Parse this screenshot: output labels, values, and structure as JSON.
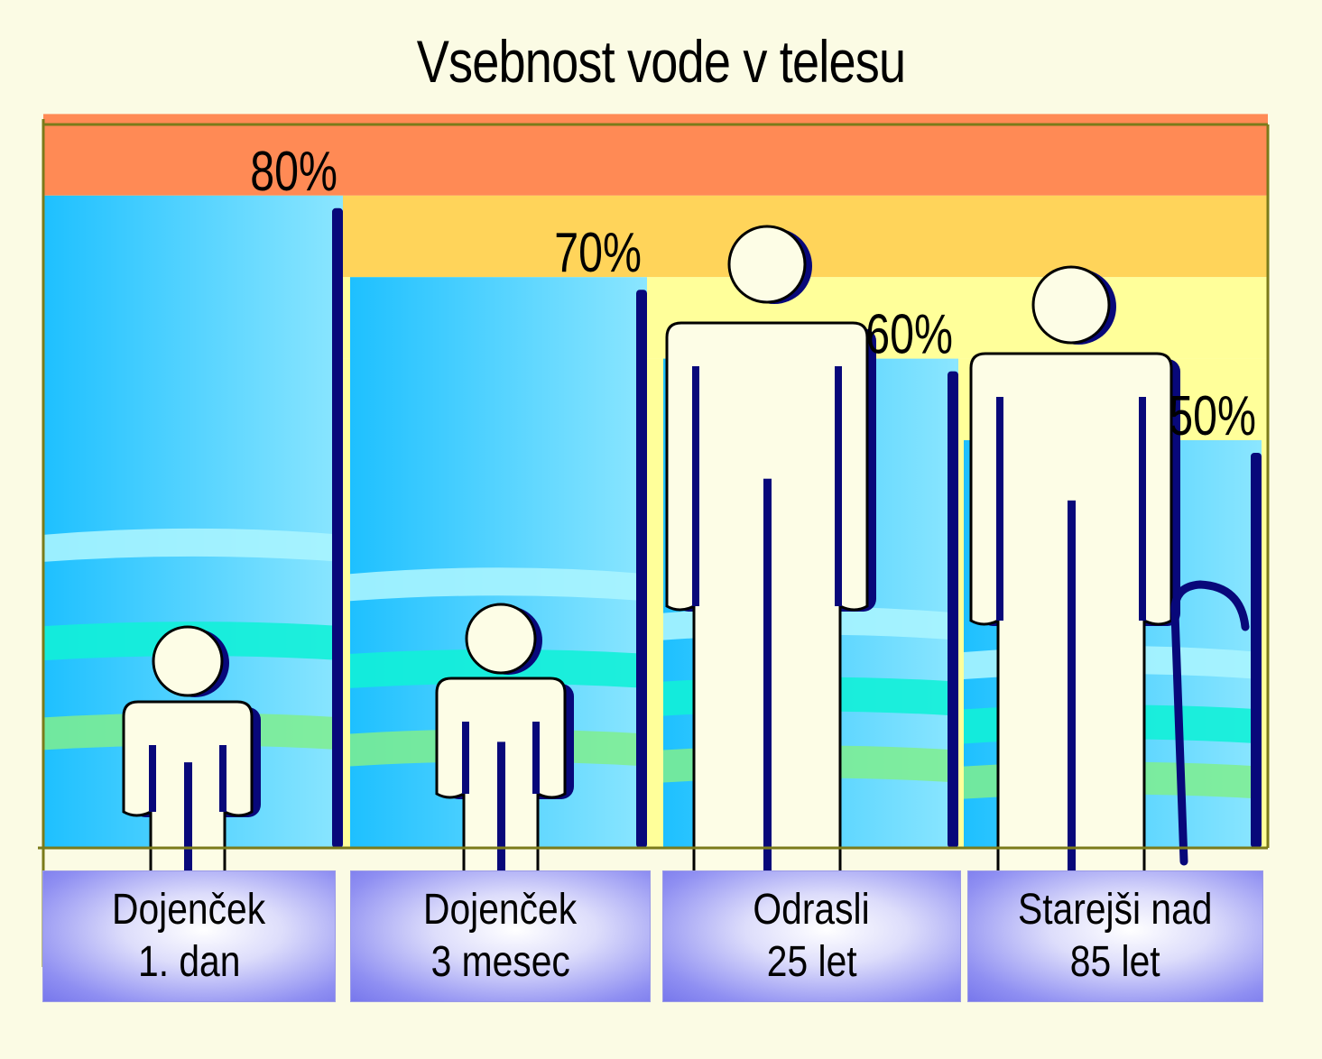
{
  "title": "Vsebnost vode v telesu",
  "colors": {
    "background": "#fbfbe4",
    "band_red": "#ff4545",
    "band_orange": "#ff8a55",
    "band_amber": "#ffd45a",
    "band_yellow": "#ffff9a",
    "water_blue": "#2ec4ff",
    "post_navy": "#08087a",
    "figure_fill": "#fdfde6",
    "axis_olive": "#7b7b1a"
  },
  "chart_data": {
    "type": "bar",
    "title": "Vsebnost vode v telesu",
    "categories": [
      "Dojenček 1. dan",
      "Dojenček 3 mesec",
      "Odrasli 25 let",
      "Starejši nad 85 let"
    ],
    "values": [
      80,
      70,
      60,
      50
    ],
    "value_labels": [
      "80%",
      "70%",
      "60%",
      "50%"
    ],
    "unit": "%",
    "ylim": [
      0,
      100
    ],
    "category_lines": [
      [
        "Dojenček",
        "1. dan"
      ],
      [
        "Dojenček",
        "3 mesec"
      ],
      [
        "Odrasli",
        "25 let"
      ],
      [
        "Starejši nad",
        "85 let"
      ]
    ],
    "figures": [
      "infant-figure",
      "baby-figure",
      "adult-figure",
      "elderly-figure-with-cane"
    ],
    "bands": [
      90,
      80,
      70,
      60
    ]
  }
}
